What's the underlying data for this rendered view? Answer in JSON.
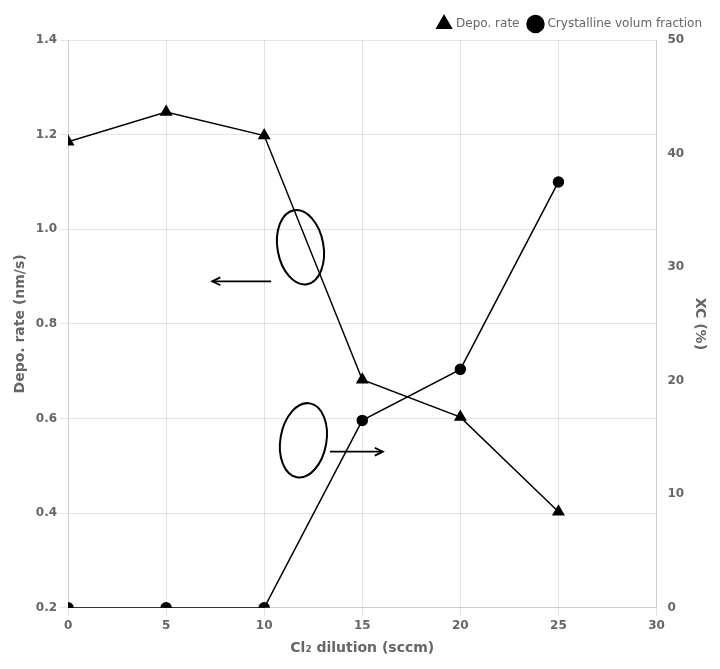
{
  "chart_data": {
    "type": "line",
    "x": [
      0,
      5,
      10,
      15,
      20,
      25
    ],
    "xlabel": "Cl₂ dilution (sccm)",
    "ylabel": "Depo. rate (nm/s)",
    "y2label": "XC (%)",
    "series": [
      {
        "name": "Depo. rate",
        "color": "black",
        "marker": "triangle",
        "values": [
          1.185,
          1.248,
          1.198,
          0.682,
          0.603,
          0.403
        ]
      },
      {
        "name": "Crystalline volum fraction",
        "color": "black",
        "marker": "circle",
        "axis": "y2",
        "values": [
          0.0,
          0.0,
          0.0,
          16.5,
          21.0,
          37.5
        ]
      }
    ],
    "xlim": [
      0,
      30
    ],
    "xticks": [
      0,
      5,
      10,
      15,
      20,
      25,
      30
    ],
    "ylim": [
      0.2,
      1.4
    ],
    "yticks": [
      0.2,
      0.4,
      0.6,
      0.8,
      {
        "value": 1.0,
        "label": "1.0"
      },
      1.2,
      1.4
    ],
    "y2lim": [
      0,
      50
    ],
    "y2ticks": [
      0,
      10,
      20,
      30,
      40,
      50
    ],
    "grid": true,
    "legend": "upper right"
  }
}
